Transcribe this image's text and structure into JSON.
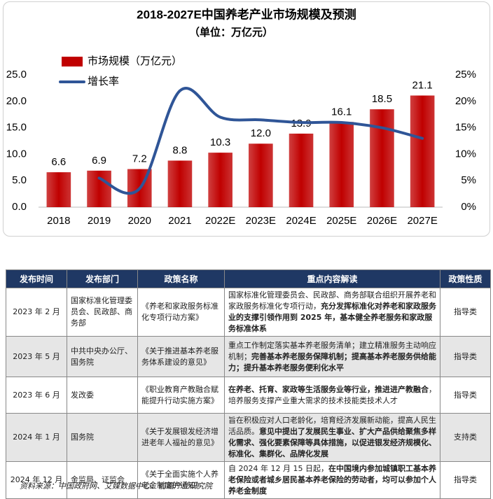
{
  "chart_data": {
    "type": "bar-line",
    "title": "2018-2027E中国养老产业市场规模及预测",
    "subtitle": "（单位：万亿元）",
    "categories": [
      "2018",
      "2019",
      "2020",
      "2021",
      "2022E",
      "2023E",
      "2024E",
      "2025E",
      "2026E",
      "2027E"
    ],
    "series": [
      {
        "name": "市场规模（万亿元）",
        "type": "bar",
        "color": "#c00000",
        "values": [
          6.6,
          6.9,
          7.2,
          8.8,
          10.3,
          12.0,
          13.9,
          16.1,
          18.5,
          21.1
        ],
        "value_labels": [
          "6.6",
          "6.9",
          "7.2",
          "8.8",
          "10.3",
          "12.0",
          "13.9",
          "16.1",
          "18.5",
          "21.1"
        ]
      },
      {
        "name": "增长率",
        "type": "line",
        "axis": "y2",
        "color": "#2f5597",
        "values": [
          null,
          5.5,
          3.5,
          22,
          17,
          16.5,
          16,
          16,
          15,
          13
        ]
      }
    ],
    "ylim": [
      0,
      25
    ],
    "yticks": [
      {
        "value": 0,
        "label": "0.0"
      },
      {
        "value": 5,
        "label": "5.0"
      },
      {
        "value": 10,
        "label": "10.0"
      },
      {
        "value": 15,
        "label": "15.0"
      },
      {
        "value": 20,
        "label": "20.0"
      },
      {
        "value": 25,
        "label": "25.0"
      }
    ],
    "y2lim": [
      0,
      25
    ],
    "y2ticks": [
      {
        "value": 0,
        "label": "0%"
      },
      {
        "value": 5,
        "label": "5%"
      },
      {
        "value": 10,
        "label": "10%"
      },
      {
        "value": 15,
        "label": "15%"
      },
      {
        "value": 20,
        "label": "20%"
      },
      {
        "value": 25,
        "label": "25%"
      }
    ],
    "grid": false,
    "legend": "top-left"
  },
  "table": {
    "headers": [
      "发布时间",
      "发布部门",
      "政策名称",
      "重点内容解读",
      "政策性质"
    ],
    "rows": [
      {
        "date": "2023 年 2 月",
        "dept": "国家标准化管理委员会、民政部、商务部",
        "name": "《养老和家政服务标准化专项行动方案》",
        "content": [
          {
            "text": "国家标准化管理委员会、民政部、商务部联合组织开展养老和家政服务标准化专项行动，",
            "bold": false
          },
          {
            "text": "充分发挥标准化对养老和家政服务业的支撑引领作用到 2025 年，基本健全养老服务和家政服务标准体系",
            "bold": true
          }
        ],
        "nature": "指导类"
      },
      {
        "date": "2023 年 5 月",
        "dept": "中共中央办公厅、国务院",
        "name": "《关于推进基本养老服务体系建设的意见》",
        "content": [
          {
            "text": "重点工作制定落实基本养老服务清单；建立精准服务主动响应机制；",
            "bold": false
          },
          {
            "text": "完善基本养老服务保障机制；提高基本养老服务供给能力；提升基本养老服务便利化水平",
            "bold": true
          }
        ],
        "nature": "指导类"
      },
      {
        "date": "2023 年 6 月",
        "dept": "发改委",
        "name": "《职业教育产教融合赋能提升行动实施方案》",
        "content": [
          {
            "text": "在养老、托育、家政等生活服务业等行业，推进进产教融合",
            "bold": true
          },
          {
            "text": "，培养服务支撑产业重大需求的技术技能类技术人才",
            "bold": false
          }
        ],
        "nature": "指导类"
      },
      {
        "date": "2024 年 1 月",
        "dept": "国务院",
        "name": "《关于发展银发经济增进老年人福祉的意见》",
        "content": [
          {
            "text": "旨在积极应对人口老龄化，培育经济发展新动能，提高人民生活品质。",
            "bold": false
          },
          {
            "text": "意见中提出了发展民生事业、扩大产品供给聚焦多样化需求、强化要素保障等具体措施，以促进银发经济规模化、标准化、集群化、品牌化发展",
            "bold": true
          }
        ],
        "nature": "支持类"
      },
      {
        "date": "2024 年 12 月",
        "dept": "金监局、证监会",
        "name": "《关于全面实施个人养老金制度的通知》",
        "content": [
          {
            "text": "自 2024 年 12 月 15 日起，",
            "bold": false
          },
          {
            "text": "在中国境内参加城镇职工基本养老保险或者城乡居民基本养老保险的劳动者，均可以参加个人养老金制度",
            "bold": true
          }
        ],
        "nature": "指导类"
      }
    ]
  },
  "source": "资料来源：中国政府网、艾媒数据中心、前瞻产业研究院"
}
